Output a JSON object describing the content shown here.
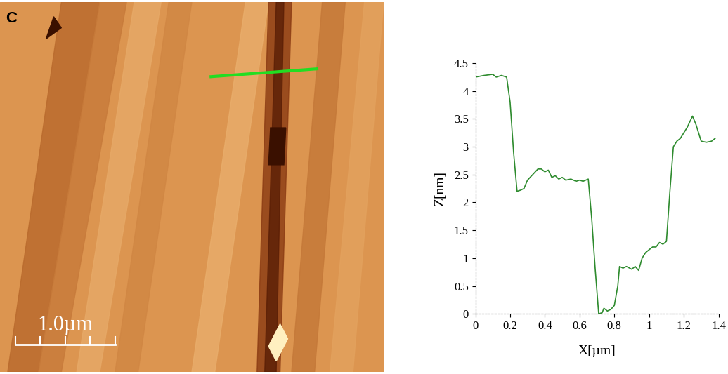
{
  "panel_label": "C",
  "scale_bar": "1.0µm",
  "chart_data": {
    "type": "line",
    "color": "#2e8b2e",
    "line_style": "solid",
    "xlabel": "X[µm]",
    "ylabel": "Z[nm]",
    "x": [
      0,
      0.05,
      0.1,
      0.12,
      0.15,
      0.18,
      0.2,
      0.22,
      0.24,
      0.26,
      0.28,
      0.3,
      0.33,
      0.36,
      0.38,
      0.4,
      0.42,
      0.44,
      0.46,
      0.48,
      0.5,
      0.52,
      0.55,
      0.58,
      0.6,
      0.62,
      0.65,
      0.67,
      0.69,
      0.71,
      0.73,
      0.74,
      0.76,
      0.78,
      0.8,
      0.82,
      0.83,
      0.85,
      0.87,
      0.9,
      0.92,
      0.94,
      0.96,
      0.98,
      1.0,
      1.02,
      1.04,
      1.06,
      1.08,
      1.1,
      1.12,
      1.14,
      1.16,
      1.18,
      1.2,
      1.22,
      1.25,
      1.27,
      1.3,
      1.33,
      1.36,
      1.38
    ],
    "values": [
      4.25,
      4.28,
      4.3,
      4.25,
      4.28,
      4.25,
      3.8,
      2.9,
      2.2,
      2.22,
      2.25,
      2.4,
      2.5,
      2.6,
      2.6,
      2.55,
      2.58,
      2.45,
      2.48,
      2.42,
      2.45,
      2.4,
      2.42,
      2.38,
      2.4,
      2.38,
      2.42,
      1.7,
      0.8,
      0.0,
      0.02,
      0.1,
      0.05,
      0.08,
      0.15,
      0.5,
      0.85,
      0.82,
      0.85,
      0.8,
      0.85,
      0.78,
      1.0,
      1.1,
      1.15,
      1.2,
      1.2,
      1.28,
      1.25,
      1.3,
      2.2,
      3.0,
      3.1,
      3.15,
      3.25,
      3.35,
      3.55,
      3.4,
      3.1,
      3.08,
      3.1,
      3.15
    ],
    "xlim": [
      0,
      1.4
    ],
    "ylim": [
      0,
      4.5
    ],
    "xticks": [
      0,
      0.2,
      0.4,
      0.6,
      0.8,
      1,
      1.2,
      1.4
    ],
    "yticks": [
      0,
      0.5,
      1,
      1.5,
      2,
      2.5,
      3,
      3.5,
      4,
      4.5
    ]
  }
}
